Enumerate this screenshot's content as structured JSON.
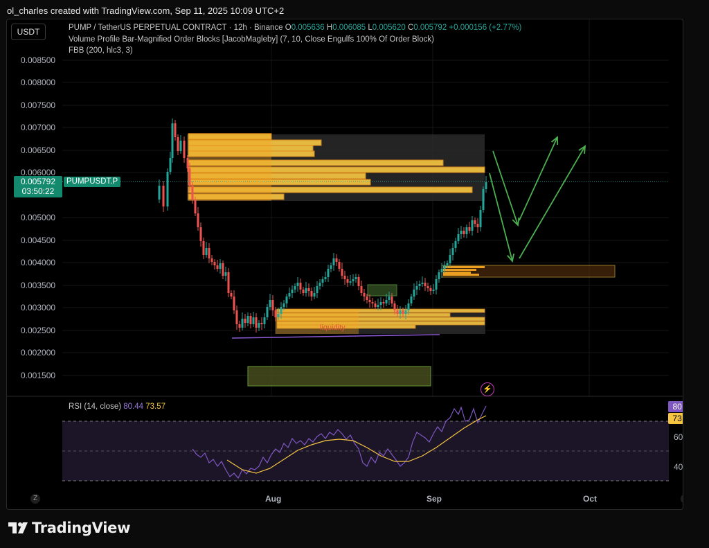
{
  "header": {
    "text": "ol_charles created with TradingView.com, Sep 11, 2025 10:09 UTC+2"
  },
  "currency_button": "USDT",
  "legend": {
    "symbol": "PUMP / TetherUS PERPETUAL CONTRACT · 12h · Binance",
    "o_label": "O",
    "o": "0.005636",
    "h_label": "H",
    "h": "0.006085",
    "l_label": "L",
    "l": "0.005620",
    "c_label": "C",
    "c": "0.005792",
    "change": "+0.000156 (+2.77%)",
    "indicator1": "Volume Profile Bar-Magnified Order Blocks [JacobMagleby] (7, 10, Close Engulfs 100% Of Order Block)",
    "indicator2": "FBB (200, hlc3, 3)"
  },
  "price_axis": [
    "0.008500",
    "0.008000",
    "0.007500",
    "0.007000",
    "0.006500",
    "0.006000",
    "0.005000",
    "0.004500",
    "0.004000",
    "0.003500",
    "0.003000",
    "0.002500",
    "0.002000",
    "0.001500"
  ],
  "last_price": {
    "price": "0.005792",
    "countdown": "03:50:22",
    "symbol": "PUMPUSDT.P"
  },
  "time_axis": [
    "Aug",
    "Sep",
    "Oct"
  ],
  "annotation": "liquidity",
  "rsi": {
    "label": "RSI (14, close)",
    "value": "80.44",
    "ma": "73.57",
    "axis": [
      "60.00",
      "40.00"
    ]
  },
  "corners": {
    "left": "Z",
    "right": "A"
  },
  "brand": "TradingView",
  "colors": {
    "up": "#26a69a",
    "down": "#ef5350",
    "rsi": "#7e57c2",
    "rsi_ma": "#f5c542",
    "orderblock": "#f5c542",
    "arrows": "#4caf50"
  }
}
